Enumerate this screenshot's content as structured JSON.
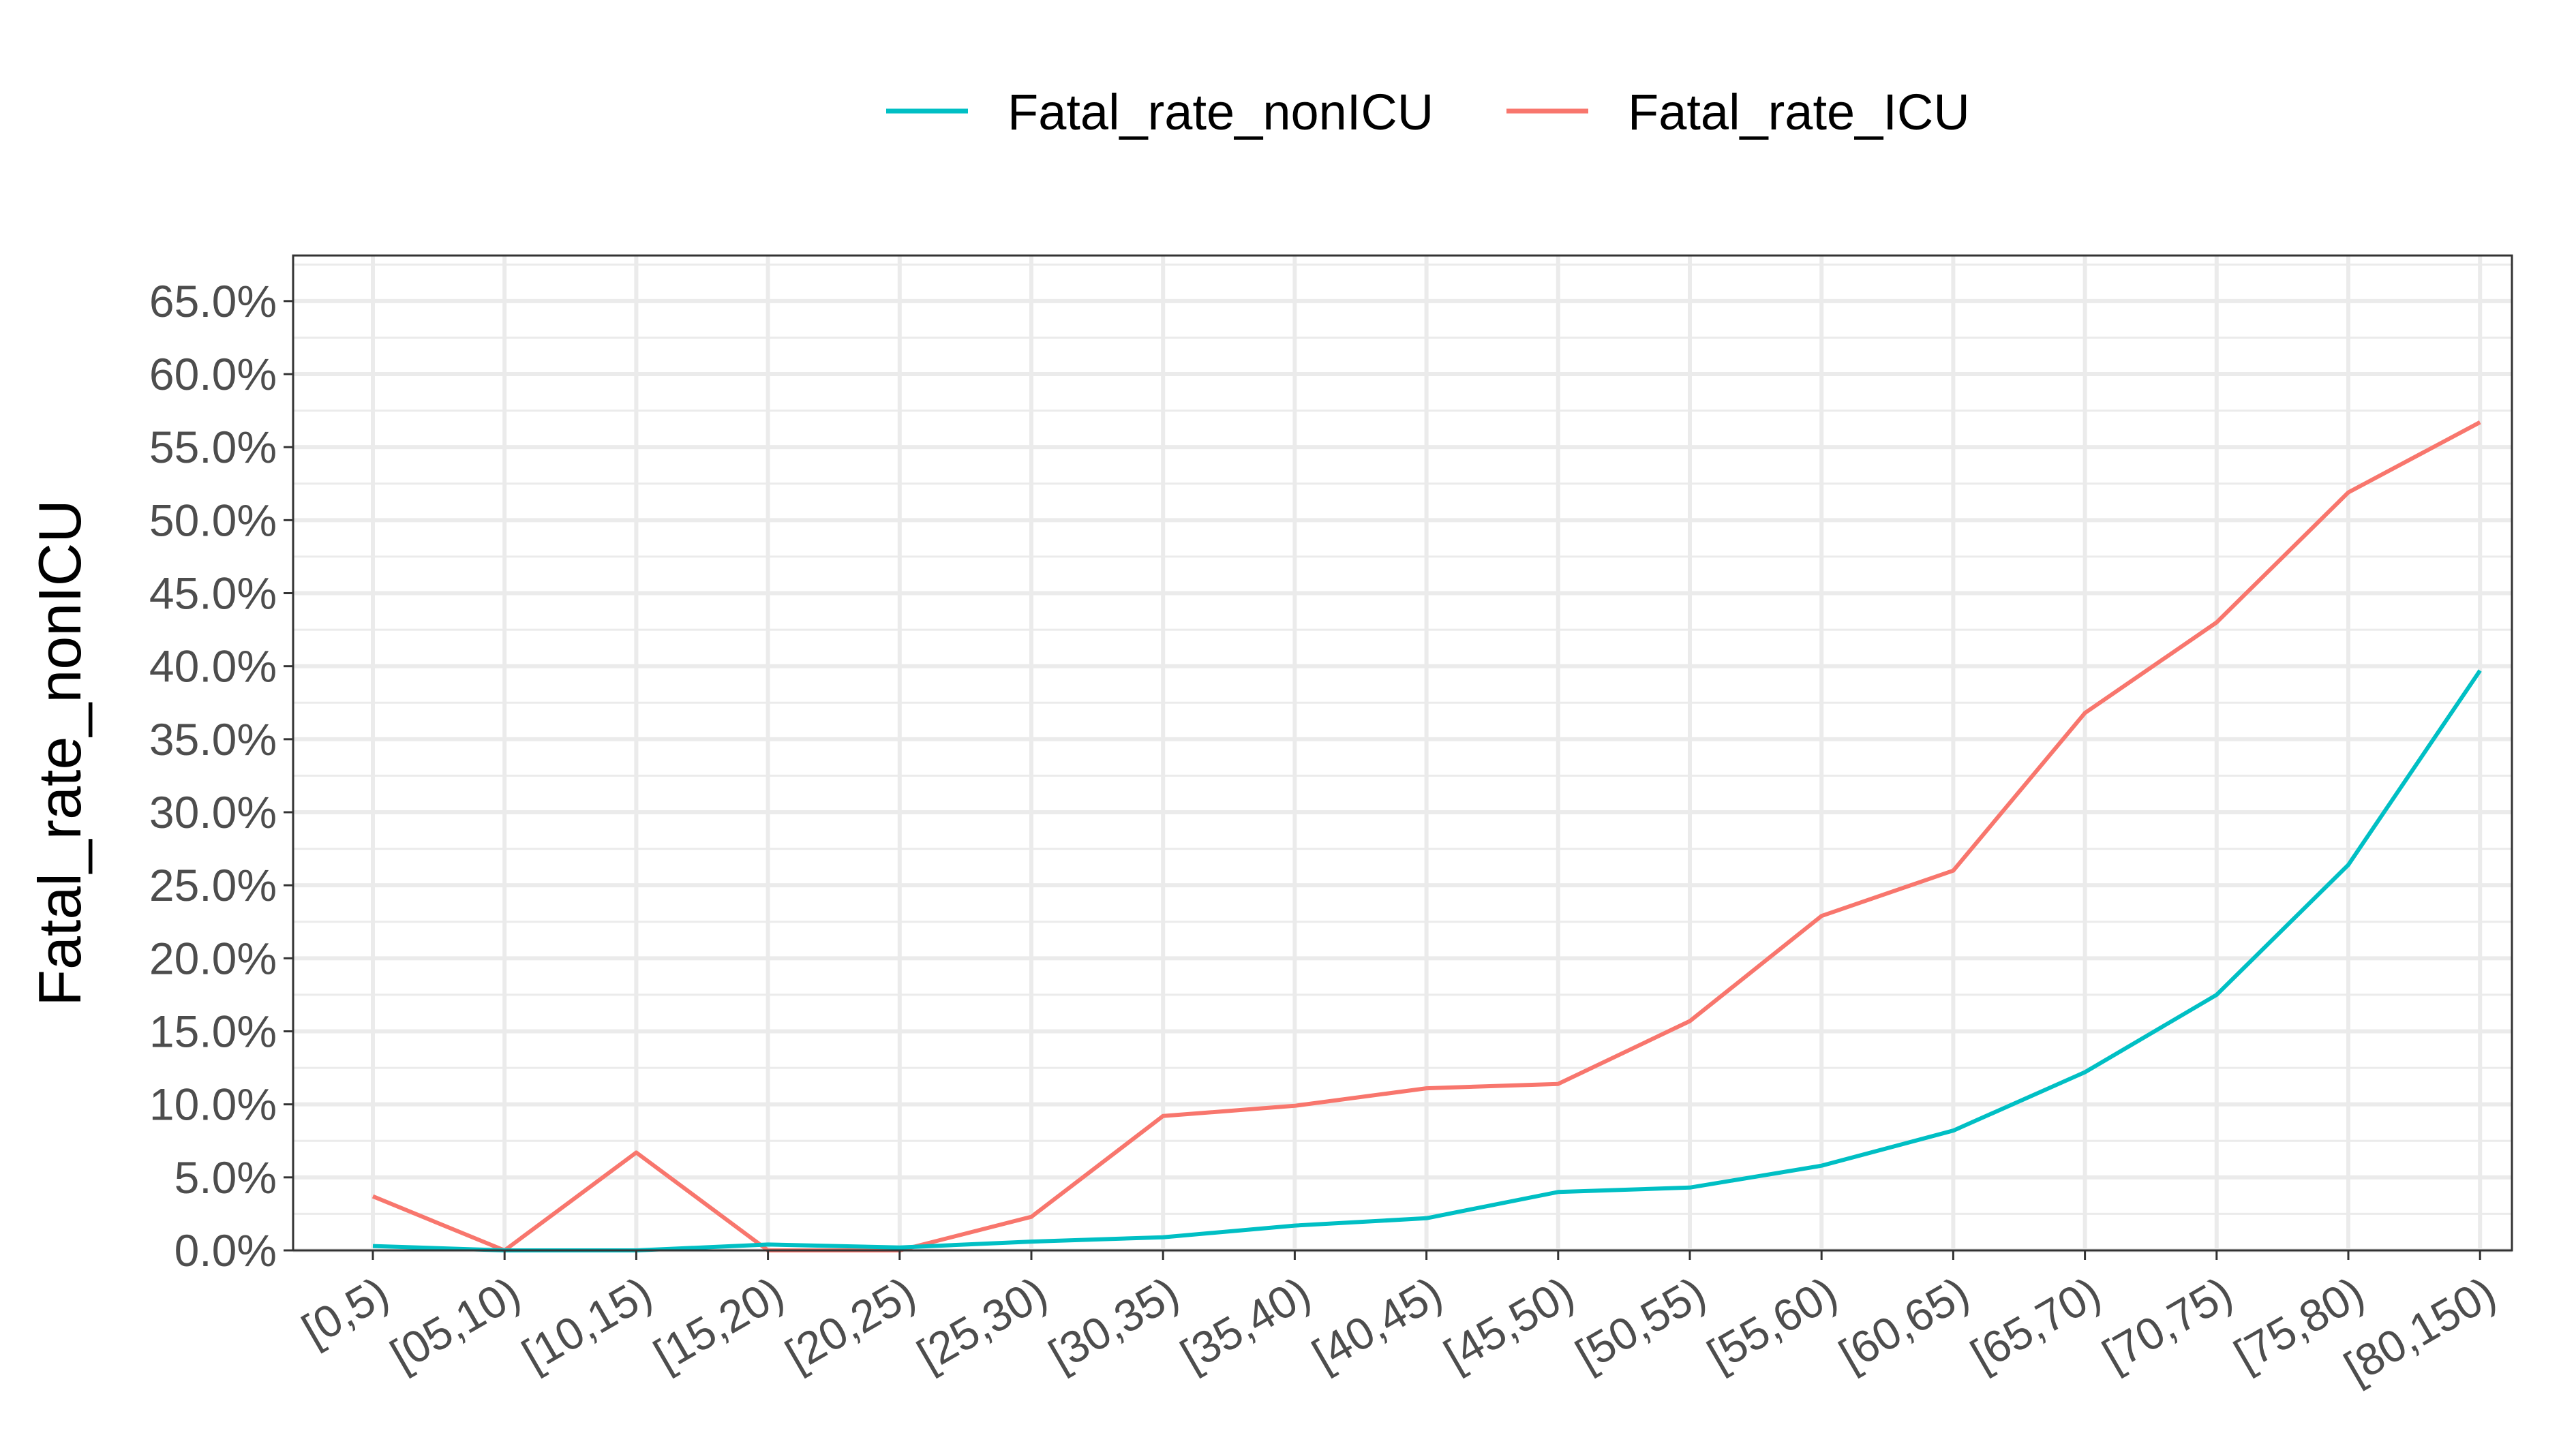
{
  "chart_data": {
    "type": "line",
    "title": "",
    "xlabel": "",
    "ylabel": "Fatal_rate_nonICU",
    "categories": [
      "[0,5)",
      "[05,10)",
      "[10,15)",
      "[15,20)",
      "[20,25)",
      "[25,30)",
      "[30,35)",
      "[35,40)",
      "[40,45)",
      "[45,50)",
      "[50,55)",
      "[55,60)",
      "[60,65)",
      "[65,70)",
      "[70,75)",
      "[75,80)",
      "[80,150)"
    ],
    "series": [
      {
        "name": "Fatal_rate_nonICU",
        "color": "#00BFC4",
        "values": [
          0.003,
          0.0,
          0.0,
          0.004,
          0.002,
          0.006,
          0.009,
          0.017,
          0.022,
          0.04,
          0.043,
          0.058,
          0.082,
          0.122,
          0.175,
          0.264,
          0.397
        ]
      },
      {
        "name": "Fatal_rate_ICU",
        "color": "#F8766D",
        "values": [
          0.037,
          0.0,
          0.067,
          0.0,
          0.0,
          0.023,
          0.092,
          0.099,
          0.111,
          0.114,
          0.157,
          0.229,
          0.26,
          0.368,
          0.43,
          0.519,
          0.567
        ]
      }
    ],
    "ylim": [
      0,
      0.68
    ],
    "yticks": [
      0,
      0.05,
      0.1,
      0.15,
      0.2,
      0.25,
      0.3,
      0.35,
      0.4,
      0.45,
      0.5,
      0.55,
      0.6,
      0.65
    ],
    "ytick_labels": [
      "0.0%",
      "5.0%",
      "10.0%",
      "15.0%",
      "20.0%",
      "25.0%",
      "30.0%",
      "35.0%",
      "40.0%",
      "45.0%",
      "50.0%",
      "55.0%",
      "60.0%",
      "65.0%"
    ],
    "grid": true,
    "legend_position": "top"
  }
}
